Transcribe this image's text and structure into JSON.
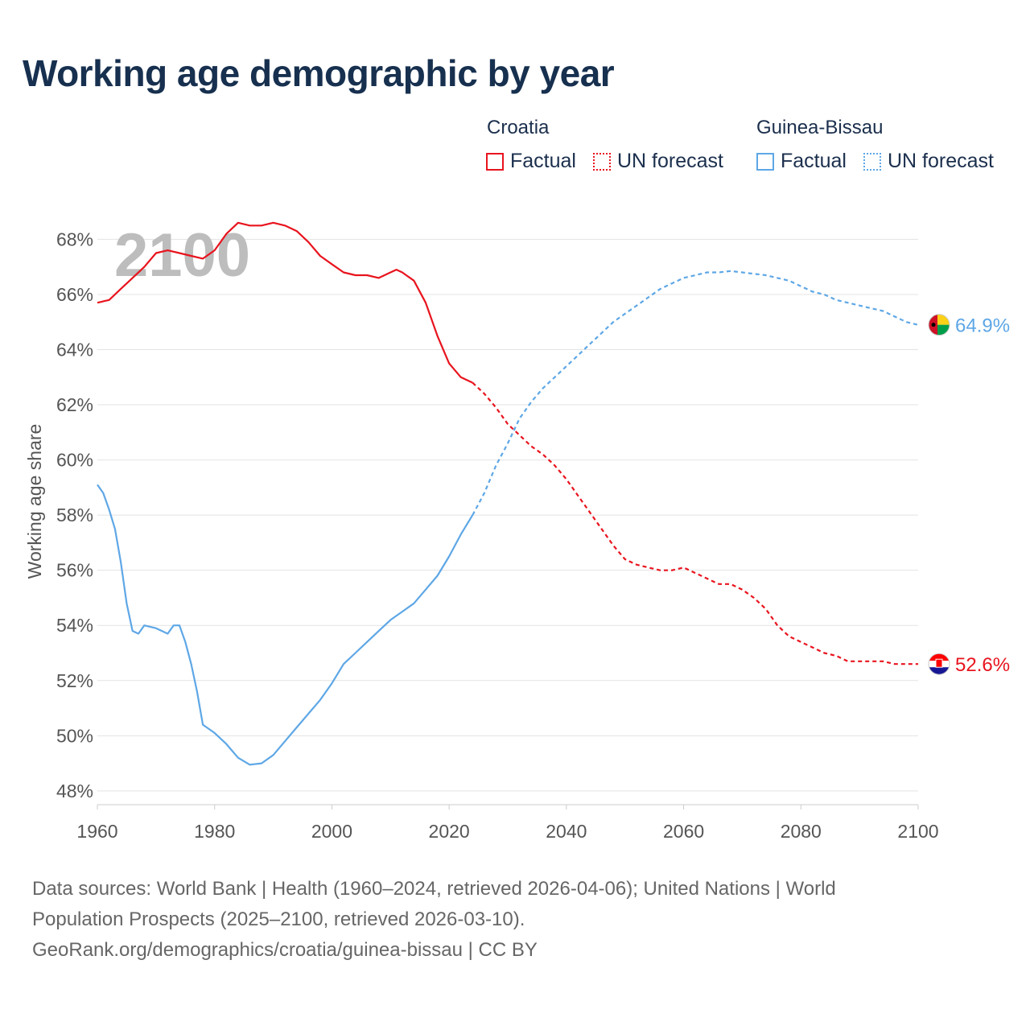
{
  "title": "Working age demographic by year",
  "legend": {
    "groups": [
      {
        "name": "Croatia",
        "factual_label": "Factual",
        "forecast_label": "UN forecast",
        "color": "#e8141e"
      },
      {
        "name": "Guinea-Bissau",
        "factual_label": "Factual",
        "forecast_label": "UN forecast",
        "color": "#5ea7e6"
      }
    ]
  },
  "year_watermark": "2100",
  "end_labels": {
    "croatia": "52.6%",
    "guinea_bissau": "64.9%"
  },
  "footer": {
    "line1": "Data sources: World Bank | Health (1960–2024, retrieved 2026-04-06); United Nations | World",
    "line2": "Population Prospects (2025–2100, retrieved 2026-03-10).",
    "line3": "GeoRank.org/demographics/croatia/guinea-bissau | CC BY"
  },
  "chart_data": {
    "type": "line",
    "title": "Working age demographic by year",
    "xlabel": "",
    "ylabel": "Working age share",
    "xlim": [
      1960,
      2100
    ],
    "ylim": [
      47.5,
      69.5
    ],
    "x_ticks": [
      "1960",
      "1980",
      "2000",
      "2020",
      "2040",
      "2060",
      "2080",
      "2100"
    ],
    "x_tick_values": [
      1960,
      1980,
      2000,
      2020,
      2040,
      2060,
      2080,
      2100
    ],
    "y_ticks": [
      "48%",
      "50%",
      "52%",
      "54%",
      "56%",
      "58%",
      "60%",
      "62%",
      "64%",
      "66%",
      "68%"
    ],
    "y_tick_values": [
      48,
      50,
      52,
      54,
      56,
      58,
      60,
      62,
      64,
      66,
      68
    ],
    "grid": true,
    "factual_range": [
      1960,
      2024
    ],
    "forecast_range": [
      2024,
      2100
    ],
    "series": [
      {
        "name": "Croatia",
        "color": "#e8141e",
        "x": [
          1960,
          1962,
          1964,
          1966,
          1968,
          1970,
          1972,
          1974,
          1976,
          1978,
          1980,
          1982,
          1984,
          1986,
          1988,
          1990,
          1992,
          1994,
          1996,
          1998,
          2000,
          2002,
          2004,
          2006,
          2008,
          2010,
          2011,
          2012,
          2014,
          2016,
          2018,
          2020,
          2022,
          2024,
          2026,
          2028,
          2030,
          2032,
          2034,
          2036,
          2038,
          2040,
          2042,
          2044,
          2046,
          2048,
          2050,
          2052,
          2054,
          2056,
          2058,
          2060,
          2062,
          2064,
          2066,
          2068,
          2070,
          2072,
          2074,
          2076,
          2078,
          2080,
          2082,
          2084,
          2086,
          2088,
          2090,
          2092,
          2094,
          2096,
          2098,
          2100
        ],
        "y": [
          65.7,
          65.8,
          66.2,
          66.6,
          67.0,
          67.5,
          67.6,
          67.5,
          67.4,
          67.3,
          67.6,
          68.2,
          68.6,
          68.5,
          68.5,
          68.6,
          68.5,
          68.3,
          67.9,
          67.4,
          67.1,
          66.8,
          66.7,
          66.7,
          66.6,
          66.8,
          66.9,
          66.8,
          66.5,
          65.7,
          64.5,
          63.5,
          63.0,
          62.8,
          62.4,
          61.9,
          61.3,
          60.9,
          60.5,
          60.2,
          59.8,
          59.3,
          58.7,
          58.1,
          57.5,
          56.9,
          56.4,
          56.2,
          56.1,
          56.0,
          56.0,
          56.1,
          55.9,
          55.7,
          55.5,
          55.5,
          55.3,
          55.0,
          54.6,
          54.0,
          53.6,
          53.4,
          53.2,
          53.0,
          52.9,
          52.7,
          52.7,
          52.7,
          52.7,
          52.6,
          52.6,
          52.6
        ],
        "end_label": "52.6%"
      },
      {
        "name": "Guinea-Bissau",
        "color": "#5ea7e6",
        "x": [
          1960,
          1961,
          1962,
          1963,
          1964,
          1965,
          1966,
          1967,
          1968,
          1970,
          1972,
          1973,
          1974,
          1975,
          1976,
          1977,
          1978,
          1980,
          1982,
          1984,
          1986,
          1988,
          1990,
          1992,
          1994,
          1996,
          1998,
          2000,
          2002,
          2004,
          2006,
          2008,
          2010,
          2012,
          2014,
          2016,
          2018,
          2020,
          2022,
          2024,
          2026,
          2028,
          2030,
          2032,
          2034,
          2036,
          2038,
          2040,
          2042,
          2044,
          2046,
          2048,
          2050,
          2052,
          2054,
          2056,
          2058,
          2060,
          2062,
          2064,
          2066,
          2068,
          2070,
          2072,
          2074,
          2076,
          2078,
          2080,
          2082,
          2084,
          2086,
          2088,
          2090,
          2092,
          2094,
          2096,
          2098,
          2100
        ],
        "y": [
          59.1,
          58.8,
          58.2,
          57.5,
          56.3,
          54.8,
          53.8,
          53.7,
          54.0,
          53.9,
          53.7,
          54.0,
          54.0,
          53.4,
          52.6,
          51.6,
          50.4,
          50.1,
          49.7,
          49.2,
          48.95,
          49.0,
          49.3,
          49.8,
          50.3,
          50.8,
          51.3,
          51.9,
          52.6,
          53.0,
          53.4,
          53.8,
          54.2,
          54.5,
          54.8,
          55.3,
          55.8,
          56.5,
          57.3,
          58.0,
          58.8,
          59.8,
          60.6,
          61.5,
          62.1,
          62.6,
          63.0,
          63.4,
          63.8,
          64.2,
          64.6,
          65.0,
          65.3,
          65.6,
          65.9,
          66.2,
          66.4,
          66.6,
          66.7,
          66.8,
          66.8,
          66.85,
          66.8,
          66.75,
          66.7,
          66.6,
          66.5,
          66.3,
          66.1,
          66.0,
          65.8,
          65.7,
          65.6,
          65.5,
          65.4,
          65.2,
          65.0,
          64.9
        ],
        "end_label": "64.9%"
      }
    ]
  }
}
